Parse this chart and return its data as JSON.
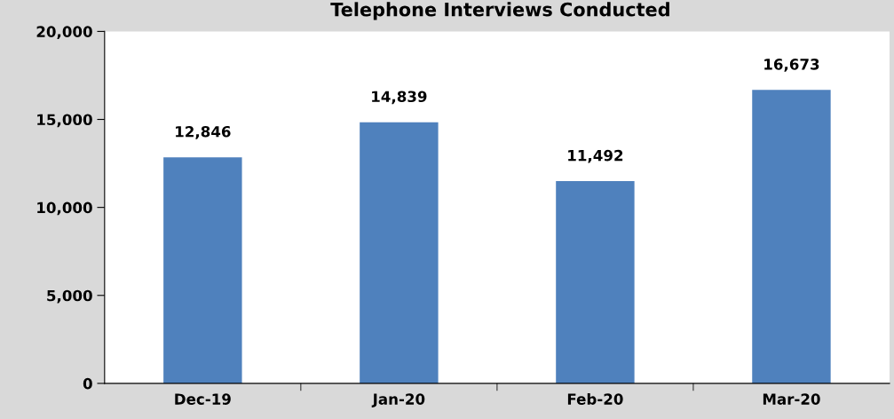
{
  "chart_data": {
    "type": "bar",
    "title": "Telephone Interviews Conducted",
    "categories": [
      "Dec-19",
      "Jan-20",
      "Feb-20",
      "Mar-20"
    ],
    "values": [
      12846,
      14839,
      11492,
      16673
    ],
    "color": "#4f81bd",
    "ylim": [
      0,
      20000
    ],
    "yticks": [
      {
        "value": 0,
        "label": "0"
      },
      {
        "value": 5000,
        "label": "5,000"
      },
      {
        "value": 10000,
        "label": "10,000"
      },
      {
        "value": 15000,
        "label": "15,000"
      },
      {
        "value": 20000,
        "label": "20,000"
      }
    ],
    "value_labels": [
      "12,846",
      "14,839",
      "11,492",
      "16,673"
    ],
    "grid": false,
    "legend": false
  }
}
